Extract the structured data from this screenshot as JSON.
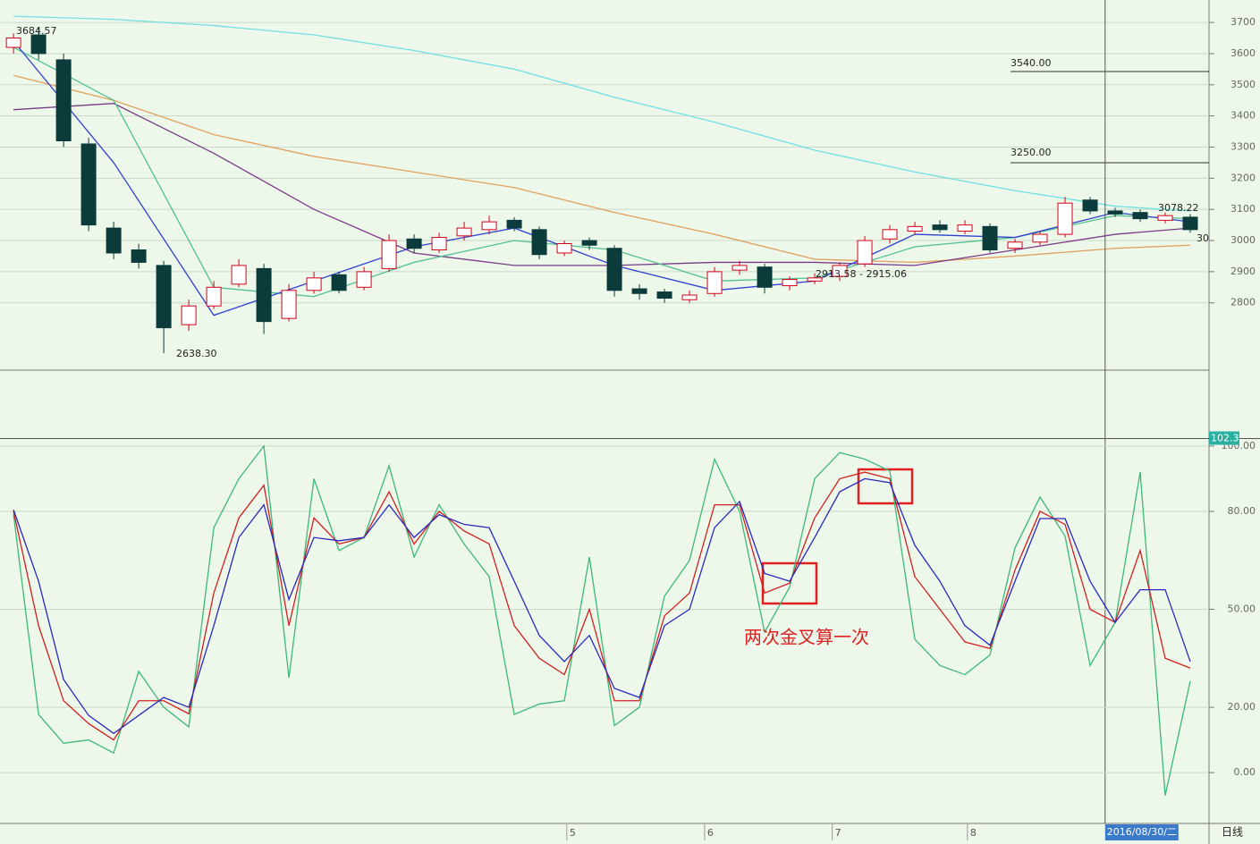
{
  "chart_data": [
    {
      "type": "candlestick",
      "xlim": [
        -0.54,
        47.75
      ],
      "ylim": [
        2584,
        3772
      ],
      "yticks": [
        2800,
        2900,
        3000,
        3100,
        3200,
        3300,
        3400,
        3500,
        3600,
        3700
      ],
      "up_color": "#d4001a",
      "down_color": "#0c3b3b",
      "open": [
        3620,
        3660,
        3580,
        3310,
        3040,
        2970,
        2920,
        2730,
        2790,
        2860,
        2910,
        2750,
        2840,
        2890,
        2850,
        2910,
        3005,
        2970,
        3015,
        3035,
        3065,
        3035,
        2960,
        3000,
        2975,
        2845,
        2835,
        2810,
        2830,
        2905,
        2915,
        2855,
        2870,
        2885,
        2925,
        3005,
        3030,
        3050,
        3030,
        3045,
        2975,
        2995,
        3020,
        3130,
        3095,
        3090,
        3065,
        3075
      ],
      "close": [
        3650,
        3600,
        3320,
        3050,
        2960,
        2930,
        2720,
        2790,
        2850,
        2920,
        2740,
        2840,
        2880,
        2840,
        2900,
        3000,
        2975,
        3010,
        3040,
        3060,
        3040,
        2955,
        2990,
        2985,
        2840,
        2830,
        2815,
        2825,
        2900,
        2920,
        2850,
        2875,
        2880,
        2920,
        3000,
        3035,
        3045,
        3035,
        3050,
        2970,
        2995,
        3020,
        3120,
        3095,
        3085,
        3070,
        3080,
        3035
      ],
      "high": [
        3665,
        3684.57,
        3600,
        3330,
        3060,
        2990,
        2935,
        2810,
        2870,
        2940,
        2925,
        2860,
        2900,
        2900,
        2915,
        3020,
        3020,
        3025,
        3060,
        3080,
        3075,
        3045,
        3000,
        3010,
        2985,
        2860,
        2845,
        2840,
        2915,
        2935,
        2925,
        2885,
        2895,
        2930,
        3015,
        3050,
        3060,
        3065,
        3065,
        3055,
        3005,
        3030,
        3140,
        3140,
        3105,
        3100,
        3090,
        3085
      ],
      "low": [
        3600,
        3580,
        3300,
        3030,
        2940,
        2910,
        2638.3,
        2710,
        2780,
        2850,
        2700,
        2740,
        2830,
        2830,
        2840,
        2900,
        2960,
        2960,
        3000,
        3020,
        3030,
        2940,
        2950,
        2970,
        2820,
        2810,
        2800,
        2800,
        2820,
        2890,
        2830,
        2840,
        2860,
        2870,
        2915,
        2990,
        3020,
        3025,
        3020,
        2960,
        2960,
        2985,
        3010,
        3085,
        3075,
        3060,
        3055,
        3025
      ],
      "ma_x": [
        0,
        4,
        8,
        12,
        16,
        20,
        24,
        28,
        32,
        36,
        40,
        44,
        47
      ],
      "series": [
        {
          "color": "#6fe0e0",
          "values": [
            3720,
            3710,
            3690,
            3660,
            3610,
            3550,
            3460,
            3380,
            3290,
            3220,
            3160,
            3110,
            3095
          ]
        },
        {
          "color": "#e0a060",
          "values": [
            3530,
            3450,
            3340,
            3270,
            3220,
            3170,
            3090,
            3020,
            2940,
            2930,
            2950,
            2975,
            2985
          ]
        },
        {
          "color": "#7a3a8a",
          "values": [
            3420,
            3440,
            3280,
            3100,
            2960,
            2920,
            2920,
            2930,
            2930,
            2920,
            2970,
            3020,
            3040
          ]
        },
        {
          "color": "#50c090",
          "values": [
            3620,
            3450,
            2850,
            2820,
            2930,
            3000,
            2970,
            2870,
            2880,
            2980,
            3010,
            3080,
            3070
          ]
        },
        {
          "color": "#3040d0",
          "values": [
            3640,
            3250,
            2760,
            2870,
            2980,
            3040,
            2920,
            2840,
            2870,
            3020,
            3010,
            3090,
            3060
          ]
        }
      ],
      "annotations": [
        "3684.57",
        "2638.30",
        "3540.00",
        "3250.00",
        "3078.22",
        "2913.58 - 2915.06",
        "30"
      ],
      "month_ticks": [
        {
          "value": 22.1,
          "label": "5"
        },
        {
          "value": 27.6,
          "label": "6"
        },
        {
          "value": 32.7,
          "label": "7"
        },
        {
          "value": 38.1,
          "label": "8"
        }
      ],
      "cursor": {
        "value": 43.6,
        "label": "2016/08/30/二"
      },
      "period": "日线"
    },
    {
      "type": "line",
      "xlim": [
        -0.54,
        47.75
      ],
      "ylim": [
        -15.3,
        121.6
      ],
      "yticks": [
        {
          "value": 0,
          "label": "0.00"
        },
        {
          "value": 20,
          "label": "20.00"
        },
        {
          "value": 50,
          "label": "50.00"
        },
        {
          "value": 80,
          "label": "80.00"
        },
        {
          "value": 100,
          "label": "100.00"
        }
      ],
      "ref_line": 102.3,
      "annotation": "两次金叉算一次",
      "series": [
        {
          "color": "#3cb878",
          "values": [
            79,
            17.8,
            9,
            10,
            6,
            31,
            20,
            14,
            75,
            90,
            100,
            29,
            90,
            68,
            72,
            94,
            66,
            82,
            70,
            60,
            17.8,
            21,
            22,
            66,
            14.4,
            20,
            54,
            65,
            96,
            80,
            43,
            56.8,
            90,
            98,
            96,
            92.4,
            40.8,
            32.8,
            30,
            36,
            68.8,
            84.4,
            72.4,
            32.8,
            46,
            92,
            -7,
            28
          ]
        },
        {
          "color": "#d02020",
          "values": [
            80,
            45,
            22,
            15,
            10,
            22,
            22,
            18,
            55,
            78,
            88,
            45,
            78,
            70,
            72,
            86,
            70,
            80,
            74,
            70,
            45,
            35,
            30,
            50,
            22,
            22,
            48,
            55,
            82,
            82,
            55,
            58,
            78,
            90,
            92,
            90,
            60,
            50,
            40,
            38,
            62,
            80,
            76,
            50,
            46,
            68,
            35,
            32
          ]
        },
        {
          "color": "#2828c0",
          "values": [
            80.5,
            58.6,
            28.5,
            17.5,
            12,
            17.5,
            23,
            20,
            45,
            72,
            82,
            53,
            72,
            71,
            72,
            82,
            72,
            79,
            76,
            75,
            58.6,
            42,
            34,
            42,
            25.8,
            23,
            45,
            50,
            75,
            83,
            61,
            58.6,
            72,
            86,
            90,
            88.8,
            69.6,
            58.6,
            45,
            39,
            58.6,
            77.8,
            77.8,
            58.6,
            46,
            56,
            56,
            34
          ]
        }
      ]
    }
  ]
}
